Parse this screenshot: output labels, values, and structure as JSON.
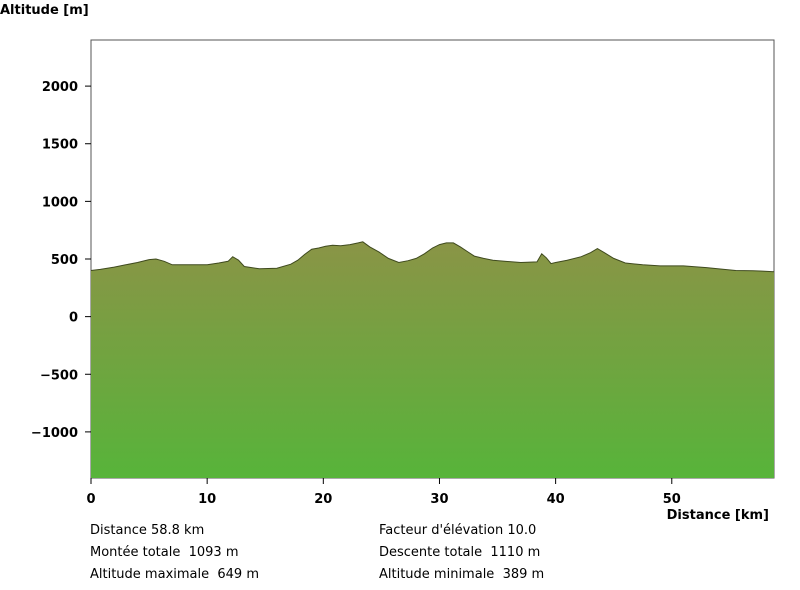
{
  "chart_data": {
    "type": "area",
    "ylabel": "Altitude [m]",
    "xlabel": "Distance [km]",
    "xlim": [
      0,
      58.8
    ],
    "ylim": [
      -1400,
      2400
    ],
    "xticks": [
      0,
      10,
      20,
      30,
      40,
      50
    ],
    "yticks": [
      2000,
      1500,
      1000,
      500,
      0,
      -500,
      -1000
    ],
    "grid": false,
    "fill_colors": {
      "top": "#8a9446",
      "bottom": "#57b43a"
    },
    "x": [
      0,
      0.8,
      2,
      3,
      4,
      5,
      5.6,
      6.3,
      7,
      8.5,
      10,
      11,
      11.8,
      12.2,
      12.7,
      13.2,
      14.5,
      16,
      17.2,
      17.8,
      18.4,
      19,
      19.6,
      20.2,
      20.8,
      21.5,
      22.3,
      23,
      23.4,
      24,
      24.8,
      25.6,
      26.5,
      27.3,
      28,
      28.7,
      29.4,
      30,
      30.6,
      31.2,
      31.8,
      32.4,
      33,
      33.8,
      34.6,
      35.6,
      37,
      38.4,
      38.8,
      39.2,
      39.6,
      40,
      41,
      42.2,
      43,
      43.6,
      44.2,
      45,
      46,
      47.5,
      49,
      51,
      53,
      54.5,
      55.5,
      57,
      57.8,
      58.8
    ],
    "y": [
      400,
      410,
      430,
      450,
      470,
      495,
      500,
      480,
      450,
      450,
      450,
      465,
      480,
      520,
      490,
      435,
      415,
      420,
      455,
      490,
      540,
      585,
      595,
      610,
      620,
      615,
      625,
      640,
      649,
      605,
      560,
      505,
      470,
      485,
      505,
      545,
      595,
      625,
      640,
      640,
      605,
      565,
      525,
      505,
      490,
      480,
      470,
      475,
      545,
      510,
      460,
      470,
      490,
      520,
      555,
      590,
      555,
      505,
      465,
      450,
      440,
      440,
      425,
      410,
      400,
      398,
      395,
      389
    ]
  },
  "stats": {
    "distance": "Distance 58.8 km",
    "climb": "Montée totale  1093 m",
    "max_alt": "Altitude maximale  649 m",
    "elev_factor": "Facteur d'élévation 10.0",
    "descent": "Descente totale  1110 m",
    "min_alt": "Altitude minimale  389 m"
  }
}
